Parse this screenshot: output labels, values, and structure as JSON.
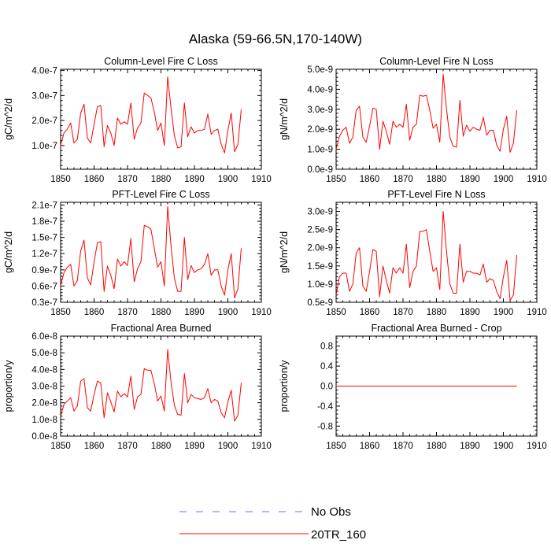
{
  "figure": {
    "title": "Alaska (59-66.5N,170-140W)"
  },
  "legend": {
    "entries": [
      {
        "label": "No Obs",
        "color": "#6a6aff",
        "dash": true
      },
      {
        "label": "20TR_160",
        "color": "#ff0000",
        "dash": false
      }
    ]
  },
  "chart_data": [
    {
      "type": "line",
      "title": "Column-Level Fire C Loss",
      "xlabel": "",
      "ylabel": "gC/m^2/d",
      "xlim": [
        1850,
        1910
      ],
      "ylim": [
        0.05,
        4.05
      ],
      "xticks": [
        1850,
        1860,
        1870,
        1880,
        1890,
        1900,
        1910
      ],
      "yticks": [
        1,
        2,
        3,
        4
      ],
      "yticklabels": [
        "1.0e-7",
        "2.0e-7",
        "3.0e-7",
        "4.0e-7"
      ],
      "series": [
        {
          "name": "20TR_160",
          "color": "#ff0000",
          "x_start": 1850,
          "values": [
            1.0,
            1.5,
            1.65,
            1.9,
            1.1,
            1.25,
            2.3,
            2.65,
            1.3,
            1.1,
            1.85,
            2.55,
            2.6,
            0.95,
            1.8,
            1.5,
            1.0,
            2.1,
            1.85,
            1.95,
            1.85,
            2.7,
            1.25,
            1.7,
            1.9,
            3.1,
            3.0,
            2.9,
            2.35,
            1.6,
            1.9,
            1.0,
            3.75,
            2.5,
            1.4,
            0.9,
            0.95,
            2.7,
            1.35,
            1.75,
            1.5,
            1.6,
            1.6,
            1.65,
            2.25,
            1.45,
            1.6,
            1.65,
            1.05,
            0.7,
            1.6,
            2.3,
            0.75,
            1.05,
            2.45
          ]
        }
      ]
    },
    {
      "type": "line",
      "title": "Column-Level Fire N Loss",
      "xlabel": "",
      "ylabel": "gN/m^2/d",
      "xlim": [
        1850,
        1910
      ],
      "ylim": [
        0,
        5
      ],
      "xticks": [
        1850,
        1860,
        1870,
        1880,
        1890,
        1900,
        1910
      ],
      "yticks": [
        0,
        1,
        2,
        3,
        4,
        5
      ],
      "yticklabels": [
        "0.0e-9",
        "1.0e-9",
        "2.0e-9",
        "3.0e-9",
        "4.0e-9",
        "5.0e-9"
      ],
      "series": [
        {
          "name": "20TR_160",
          "color": "#ff0000",
          "x_start": 1850,
          "values": [
            1.0,
            1.65,
            1.95,
            2.1,
            1.3,
            1.6,
            2.95,
            3.15,
            1.6,
            1.35,
            2.15,
            3.05,
            3.0,
            1.0,
            2.4,
            1.9,
            1.25,
            2.4,
            2.1,
            2.25,
            2.1,
            3.25,
            1.45,
            2.1,
            2.25,
            3.7,
            3.65,
            3.7,
            2.95,
            2.05,
            2.25,
            1.35,
            4.75,
            3.0,
            1.6,
            1.15,
            1.1,
            3.45,
            1.65,
            2.2,
            1.9,
            2.1,
            2.0,
            1.95,
            2.6,
            1.7,
            1.95,
            1.95,
            1.2,
            0.9,
            2.0,
            2.65,
            0.85,
            1.3,
            2.95
          ]
        }
      ]
    },
    {
      "type": "line",
      "title": "PFT-Level Fire C Loss",
      "xlabel": "",
      "ylabel": "gC/m^2/d",
      "xlim": [
        1850,
        1910
      ],
      "ylim": [
        0.3,
        2.15
      ],
      "xticks": [
        1850,
        1860,
        1870,
        1880,
        1890,
        1900,
        1910
      ],
      "yticks": [
        0.3,
        0.6,
        0.9,
        1.2,
        1.5,
        1.8,
        2.1
      ],
      "yticklabels": [
        "0.3e-7",
        "0.6e-7",
        "0.9e-7",
        "1.2e-7",
        "1.5e-7",
        "1.8e-7",
        "2.1e-7"
      ],
      "series": [
        {
          "name": "20TR_160",
          "color": "#ff0000",
          "x_start": 1850,
          "values": [
            0.6,
            0.85,
            0.95,
            1.0,
            0.6,
            0.7,
            1.25,
            1.45,
            0.75,
            0.62,
            1.05,
            1.4,
            1.42,
            0.5,
            0.97,
            0.8,
            0.55,
            1.1,
            0.97,
            1.05,
            0.98,
            1.48,
            0.68,
            0.92,
            1.05,
            1.72,
            1.7,
            1.65,
            1.3,
            0.95,
            1.05,
            0.6,
            2.07,
            1.35,
            0.75,
            0.5,
            0.5,
            1.5,
            0.72,
            0.98,
            0.85,
            0.9,
            0.92,
            1.0,
            1.2,
            0.8,
            0.9,
            0.9,
            0.6,
            0.43,
            0.9,
            1.2,
            0.38,
            0.55,
            1.3
          ]
        }
      ]
    },
    {
      "type": "line",
      "title": "PFT-Level Fire N Loss",
      "xlabel": "",
      "ylabel": "gN/m^2/d",
      "xlim": [
        1850,
        1910
      ],
      "ylim": [
        0.5,
        3.25
      ],
      "xticks": [
        1850,
        1860,
        1870,
        1880,
        1890,
        1900,
        1910
      ],
      "yticks": [
        0.5,
        1.0,
        1.5,
        2.0,
        2.5,
        3.0
      ],
      "yticklabels": [
        "0.5e-9",
        "1.0e-9",
        "1.5e-9",
        "2.0e-9",
        "2.5e-9",
        "3.0e-9"
      ],
      "series": [
        {
          "name": "20TR_160",
          "color": "#ff0000",
          "x_start": 1850,
          "values": [
            0.7,
            1.2,
            1.3,
            1.3,
            0.8,
            1.0,
            1.85,
            2.0,
            0.95,
            0.8,
            1.35,
            1.95,
            1.9,
            0.65,
            1.5,
            1.1,
            0.75,
            1.45,
            1.3,
            1.45,
            1.3,
            2.1,
            0.9,
            1.35,
            1.5,
            2.45,
            2.45,
            2.5,
            1.9,
            1.35,
            1.45,
            0.85,
            3.0,
            1.9,
            1.0,
            0.75,
            0.75,
            2.1,
            1.05,
            1.35,
            1.35,
            1.3,
            1.3,
            1.25,
            1.55,
            1.05,
            1.15,
            1.1,
            0.8,
            0.6,
            1.2,
            1.65,
            0.55,
            0.7,
            1.8
          ]
        }
      ]
    },
    {
      "type": "line",
      "title": "Fractional Area Burned",
      "xlabel": "",
      "ylabel": "proportion/y",
      "xlim": [
        1850,
        1910
      ],
      "ylim": [
        0,
        6
      ],
      "xticks": [
        1850,
        1860,
        1870,
        1880,
        1890,
        1900,
        1910
      ],
      "yticks": [
        0,
        1,
        2,
        3,
        4,
        5,
        6
      ],
      "yticklabels": [
        "0.0e-8",
        "1.0e-8",
        "2.0e-8",
        "3.0e-8",
        "4.0e-8",
        "5.0e-8",
        "6.0e-8"
      ],
      "series": [
        {
          "name": "20TR_160",
          "color": "#ff0000",
          "x_start": 1850,
          "values": [
            1.2,
            1.9,
            2.1,
            2.3,
            1.5,
            1.8,
            3.3,
            3.45,
            1.7,
            1.5,
            2.5,
            3.3,
            3.2,
            1.1,
            2.6,
            2.05,
            1.45,
            2.7,
            2.35,
            2.55,
            2.35,
            3.6,
            1.6,
            2.35,
            2.5,
            4.05,
            3.95,
            3.95,
            3.15,
            2.1,
            2.4,
            1.5,
            5.2,
            3.25,
            1.85,
            1.3,
            1.25,
            3.75,
            2.0,
            2.5,
            2.3,
            2.25,
            2.2,
            2.3,
            2.85,
            2.0,
            2.2,
            2.1,
            1.4,
            1.1,
            2.05,
            2.75,
            0.9,
            1.25,
            3.2
          ]
        }
      ]
    },
    {
      "type": "line",
      "title": "Fractional Area Burned - Crop",
      "xlabel": "",
      "ylabel": "proportion/y",
      "xlim": [
        1850,
        1910
      ],
      "ylim": [
        -1,
        1
      ],
      "xticks": [
        1850,
        1860,
        1870,
        1880,
        1890,
        1900,
        1910
      ],
      "yticks": [
        -0.8,
        -0.4,
        0,
        0.4,
        0.8
      ],
      "yticklabels": [
        "-0.8",
        "-0.4",
        "0.0",
        "0.4",
        "0.8"
      ],
      "series": [
        {
          "name": "20TR_160",
          "color": "#ff0000",
          "x_start": 1850,
          "values": [
            0,
            0,
            0,
            0,
            0,
            0,
            0,
            0,
            0,
            0,
            0,
            0,
            0,
            0,
            0,
            0,
            0,
            0,
            0,
            0,
            0,
            0,
            0,
            0,
            0,
            0,
            0,
            0,
            0,
            0,
            0,
            0,
            0,
            0,
            0,
            0,
            0,
            0,
            0,
            0,
            0,
            0,
            0,
            0,
            0,
            0,
            0,
            0,
            0,
            0,
            0,
            0,
            0,
            0,
            0
          ]
        }
      ]
    }
  ]
}
